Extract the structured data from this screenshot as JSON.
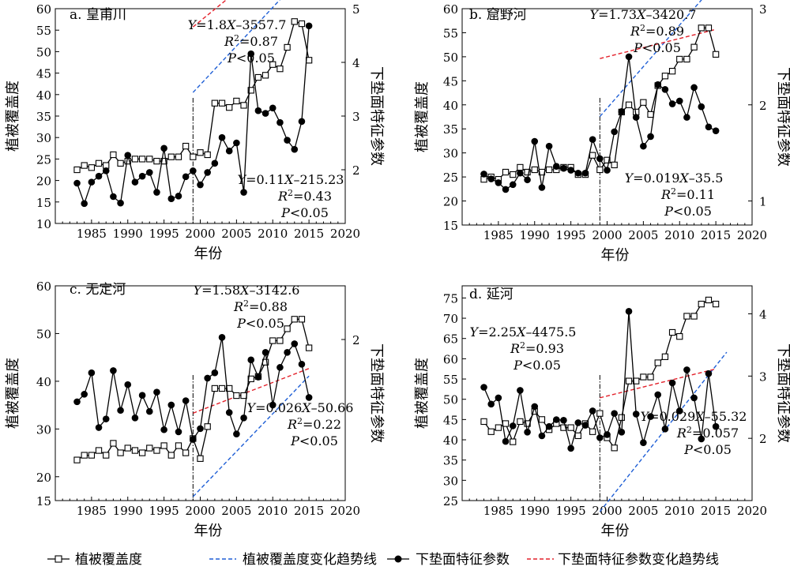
{
  "chart_data": [
    {
      "type": "line",
      "panel_label": "a. 皇甫川",
      "xlabel": "年份",
      "ylabel_left": "植被覆盖度",
      "ylabel_right": "下垫面特征参数",
      "xlim": [
        1980,
        2020
      ],
      "ylim_left": [
        10,
        60
      ],
      "ylim_right": [
        1,
        5
      ],
      "x_ticks": [
        "1985",
        "1990",
        "1995",
        "2000",
        "2005",
        "2010",
        "2015",
        "2020"
      ],
      "y_left_ticks": [
        "10",
        "15",
        "20",
        "25",
        "30",
        "35",
        "40",
        "45",
        "50",
        "55",
        "60"
      ],
      "y_right_ticks": [
        "2",
        "3",
        "4",
        "5"
      ],
      "change_year": 1999,
      "series": [
        {
          "name": "植被覆盖度",
          "axis": "left",
          "x": [
            1983,
            1984,
            1985,
            1986,
            1987,
            1988,
            1989,
            1990,
            1991,
            1992,
            1993,
            1994,
            1995,
            1996,
            1997,
            1998,
            1999,
            2000,
            2001,
            2002,
            2003,
            2004,
            2005,
            2006,
            2007,
            2008,
            2009,
            2010,
            2011,
            2012,
            2013,
            2014,
            2015
          ],
          "values": [
            22.5,
            23.5,
            23,
            24,
            23.5,
            26,
            24,
            24.5,
            25,
            25,
            25,
            24.5,
            24.5,
            25.5,
            25.5,
            28,
            25.5,
            26.5,
            26,
            38,
            38,
            37,
            38.5,
            37.5,
            41,
            44,
            44.5,
            47,
            46,
            51,
            57,
            56.5,
            48
          ]
        },
        {
          "name": "下垫面特征参数",
          "axis": "right",
          "x": [
            1983,
            1984,
            1985,
            1986,
            1987,
            1988,
            1989,
            1990,
            1991,
            1992,
            1993,
            1994,
            1995,
            1996,
            1997,
            1998,
            1999,
            2000,
            2001,
            2002,
            2003,
            2004,
            2005,
            2006,
            2007,
            2008,
            2009,
            2010,
            2011,
            2012,
            2013,
            2014,
            2015
          ],
          "values": [
            1.75,
            1.37,
            1.77,
            1.88,
            1.98,
            1.5,
            1.38,
            2.27,
            1.77,
            1.88,
            1.95,
            1.58,
            2.4,
            1.46,
            1.51,
            1.87,
            1.98,
            1.72,
            1.95,
            2.12,
            2.6,
            2.35,
            2.5,
            1.58,
            4.16,
            3.1,
            3.05,
            3.15,
            2.88,
            2.55,
            2.38,
            2.9,
            4.68
          ]
        }
      ],
      "trend_lines": [
        {
          "name": "植被覆盖度变化趋势线",
          "axis": "left",
          "color": "#1f5fd6",
          "slope": 1.8,
          "intercept": -3557.7,
          "x_range": [
            1999,
            2015
          ]
        },
        {
          "name": "下垫面特征参数变化趋势线",
          "axis": "right",
          "color": "#e3202a",
          "slope": 0.11,
          "intercept": -215.23,
          "x_range": [
            1999,
            2015
          ]
        }
      ],
      "annotations": [
        [
          "Y=1.8X–3557.7",
          "R²=0.87",
          "P<0.05"
        ],
        [
          "Y=0.11X–215.23",
          "R²=0.43",
          "P<0.05"
        ]
      ]
    },
    {
      "type": "line",
      "panel_label": "b. 窟野河",
      "xlabel": "年份",
      "ylabel_left": "植被覆盖度",
      "ylabel_right": "下垫面特征参数",
      "xlim": [
        1980,
        2020
      ],
      "ylim_left": [
        15,
        60
      ],
      "ylim_right": [
        0.75,
        3
      ],
      "x_ticks": [
        "1985",
        "1990",
        "1995",
        "2000",
        "2005",
        "2010",
        "2015",
        "2020"
      ],
      "y_left_ticks": [
        "15",
        "20",
        "25",
        "30",
        "35",
        "40",
        "45",
        "50",
        "55",
        "60"
      ],
      "y_right_ticks": [
        "1",
        "2",
        "3"
      ],
      "change_year": 1999,
      "series": [
        {
          "name": "植被覆盖度",
          "axis": "left",
          "x": [
            1983,
            1984,
            1985,
            1986,
            1987,
            1988,
            1989,
            1990,
            1991,
            1992,
            1993,
            1994,
            1995,
            1996,
            1997,
            1998,
            1999,
            2000,
            2001,
            2002,
            2003,
            2004,
            2005,
            2006,
            2007,
            2008,
            2009,
            2010,
            2011,
            2012,
            2013,
            2014,
            2015
          ],
          "values": [
            24.5,
            25,
            24.5,
            26,
            25.5,
            27,
            26,
            26.5,
            26,
            26.5,
            26.5,
            27,
            27,
            25.5,
            25.5,
            29.5,
            26.5,
            28.5,
            27.5,
            38.5,
            40,
            38.5,
            40.5,
            38,
            44,
            46,
            47,
            49.5,
            49.5,
            52,
            56,
            56,
            50.5
          ]
        },
        {
          "name": "下垫面特征参数",
          "axis": "right",
          "x": [
            1983,
            1984,
            1985,
            1986,
            1987,
            1988,
            1989,
            1990,
            1991,
            1992,
            1993,
            1994,
            1995,
            1996,
            1997,
            1998,
            1999,
            2000,
            2001,
            2002,
            2003,
            2004,
            2005,
            2006,
            2007,
            2008,
            2009,
            2010,
            2011,
            2012,
            2013,
            2014,
            2015
          ],
          "values": [
            1.28,
            1.23,
            1.19,
            1.12,
            1.17,
            1.29,
            1.22,
            1.62,
            1.14,
            1.57,
            1.36,
            1.34,
            1.32,
            1.29,
            1.29,
            1.64,
            1.44,
            1.32,
            1.72,
            1.93,
            2.5,
            1.87,
            1.57,
            1.67,
            2.21,
            2.16,
            2.01,
            2.04,
            1.87,
            2.18,
            1.98,
            1.77,
            1.73
          ]
        }
      ],
      "trend_lines": [
        {
          "name": "植被覆盖度变化趋势线",
          "axis": "left",
          "color": "#1f5fd6",
          "slope": 1.73,
          "intercept": -3420.7,
          "x_range": [
            1999,
            2015
          ]
        },
        {
          "name": "下垫面特征参数变化趋势线",
          "axis": "right",
          "color": "#e3202a",
          "slope": 0.019,
          "intercept": -35.5,
          "x_range": [
            1999,
            2015
          ]
        }
      ],
      "annotations": [
        [
          "Y=1.73X–3420.7",
          "R²=0.89",
          "P<0.05"
        ],
        [
          "Y=0.019X–35.5",
          "R²=0.11",
          "P<0.05"
        ]
      ]
    },
    {
      "type": "line",
      "panel_label": "c. 无定河",
      "xlabel": "年份",
      "ylabel_left": "植被覆盖度",
      "ylabel_right": "下垫面特征参数",
      "xlim": [
        1980,
        2020
      ],
      "ylim_left": [
        15,
        60
      ],
      "ylim_right": [
        0.5,
        2.5
      ],
      "x_ticks": [
        "1985",
        "1990",
        "1995",
        "2000",
        "2005",
        "2010",
        "2015",
        "2020"
      ],
      "y_left_ticks": [
        "15",
        "20",
        "30",
        "40",
        "50",
        "60"
      ],
      "y_right_ticks": [
        "2"
      ],
      "change_year": 1999,
      "series": [
        {
          "name": "植被覆盖度",
          "axis": "left",
          "x": [
            1983,
            1984,
            1985,
            1986,
            1987,
            1988,
            1989,
            1990,
            1991,
            1992,
            1993,
            1994,
            1995,
            1996,
            1997,
            1998,
            1999,
            2000,
            2001,
            2002,
            2003,
            2004,
            2005,
            2006,
            2007,
            2008,
            2009,
            2010,
            2011,
            2012,
            2013,
            2014,
            2015
          ],
          "values": [
            23.5,
            24.5,
            24.5,
            25.5,
            24.5,
            27,
            25,
            26,
            25.5,
            25,
            26,
            25.5,
            26.5,
            24.5,
            26.5,
            25,
            28,
            23.8,
            30.5,
            38.5,
            38.5,
            38.5,
            37,
            37,
            40.5,
            41,
            44,
            48.5,
            48.5,
            51,
            53,
            53,
            47
          ]
        },
        {
          "name": "下垫面特征参数",
          "axis": "right",
          "x": [
            1983,
            1984,
            1985,
            1986,
            1987,
            1988,
            1989,
            1990,
            1991,
            1992,
            1993,
            1994,
            1995,
            1996,
            1997,
            1998,
            1999,
            2000,
            2001,
            2002,
            2003,
            2004,
            2005,
            2006,
            2007,
            2008,
            2009,
            2010,
            2011,
            2012,
            2013,
            2014,
            2015
          ],
          "values": [
            1.42,
            1.49,
            1.69,
            1.18,
            1.26,
            1.71,
            1.34,
            1.58,
            1.27,
            1.48,
            1.33,
            1.51,
            1.16,
            1.39,
            1.14,
            1.43,
            1.07,
            1.17,
            1.64,
            1.69,
            2.02,
            1.32,
            1.12,
            1.27,
            1.81,
            1.65,
            1.88,
            1.39,
            1.74,
            1.88,
            1.96,
            1.77,
            1.46
          ]
        }
      ],
      "trend_lines": [
        {
          "name": "植被覆盖度变化趋势线",
          "axis": "left",
          "color": "#1f5fd6",
          "slope": 1.58,
          "intercept": -3142.6,
          "x_range": [
            1999,
            2015
          ]
        },
        {
          "name": "下垫面特征参数变化趋势线",
          "axis": "right",
          "color": "#e3202a",
          "slope": 0.026,
          "intercept": -50.66,
          "x_range": [
            1999,
            2015
          ]
        }
      ],
      "annotations": [
        [
          "Y=1.58X–3142.6",
          "R²=0.88",
          "P<0.05"
        ],
        [
          "Y=0.026X–50.66",
          "R²=0.22",
          "P<0.05"
        ]
      ]
    },
    {
      "type": "line",
      "panel_label": "d. 延河",
      "xlabel": "年份",
      "ylabel_left": "植被覆盖度",
      "ylabel_right": "下垫面特征参数",
      "xlim": [
        1980,
        2020
      ],
      "ylim_left": [
        25,
        78
      ],
      "ylim_right": [
        1,
        4.45
      ],
      "x_ticks": [
        "1985",
        "1990",
        "1995",
        "2000",
        "2005",
        "2010",
        "2015",
        "2020"
      ],
      "y_left_ticks": [
        "25",
        "30",
        "35",
        "40",
        "45",
        "50",
        "55",
        "60",
        "65",
        "70",
        "75"
      ],
      "y_right_ticks": [
        "2",
        "3",
        "4"
      ],
      "change_year": 1999,
      "series": [
        {
          "name": "植被覆盖度",
          "axis": "left",
          "x": [
            1983,
            1984,
            1985,
            1986,
            1987,
            1988,
            1989,
            1990,
            1991,
            1992,
            1993,
            1994,
            1995,
            1996,
            1997,
            1998,
            1999,
            2000,
            2001,
            2002,
            2003,
            2004,
            2005,
            2006,
            2007,
            2008,
            2009,
            2010,
            2011,
            2012,
            2013,
            2014,
            2015
          ],
          "values": [
            44.5,
            42,
            43,
            44,
            39.5,
            44.5,
            44,
            47,
            45,
            42.5,
            44,
            43,
            43,
            41,
            44,
            42,
            46.5,
            40.5,
            38,
            45.5,
            54.5,
            54.5,
            55.5,
            55.5,
            59,
            60.5,
            66.5,
            65.5,
            70.5,
            70.5,
            73.5,
            74.5,
            73.5
          ]
        },
        {
          "name": "下垫面特征参数",
          "axis": "right",
          "x": [
            1983,
            1984,
            1985,
            1986,
            1987,
            1988,
            1989,
            1990,
            1991,
            1992,
            1993,
            1994,
            1995,
            1996,
            1997,
            1998,
            1999,
            2000,
            2001,
            2002,
            2003,
            2004,
            2005,
            2006,
            2007,
            2008,
            2009,
            2010,
            2011,
            2012,
            2013,
            2014,
            2015
          ],
          "values": [
            2.82,
            2.55,
            2.65,
            1.95,
            2.2,
            2.77,
            2.1,
            2.51,
            2.04,
            2.19,
            2.3,
            2.29,
            1.84,
            2.25,
            2.21,
            2.44,
            2.01,
            2.06,
            2.4,
            2.1,
            4.04,
            2.39,
            1.93,
            2.35,
            2.7,
            2.15,
            2.89,
            2.44,
            3.1,
            2.65,
            1.99,
            3.04,
            2.19
          ]
        }
      ],
      "trend_lines": [
        {
          "name": "植被覆盖度变化趋势线",
          "axis": "left",
          "color": "#1f5fd6",
          "slope": 2.25,
          "intercept": -4475.5,
          "x_range": [
            1999,
            2016.5
          ]
        },
        {
          "name": "下垫面特征参数变化趋势线",
          "axis": "right",
          "color": "#e3202a",
          "slope": 0.029,
          "intercept": -55.32,
          "x_range": [
            1999,
            2015
          ]
        }
      ],
      "annotations": [
        [
          "Y=2.25X–4475.5",
          "R²=0.93",
          "P<0.05"
        ],
        [
          "Y=0.029X–55.32",
          "R²=0.057",
          "P<0.05"
        ]
      ]
    }
  ],
  "legend": [
    {
      "label": "植被覆盖度",
      "kind": "line-square"
    },
    {
      "label": "植被覆盖度变化趋势线",
      "kind": "dash",
      "color": "#1f5fd6"
    },
    {
      "label": "下垫面特征参数",
      "kind": "line-circle"
    },
    {
      "label": "下垫面特征参数变化趋势线",
      "kind": "dash",
      "color": "#e3202a"
    }
  ]
}
